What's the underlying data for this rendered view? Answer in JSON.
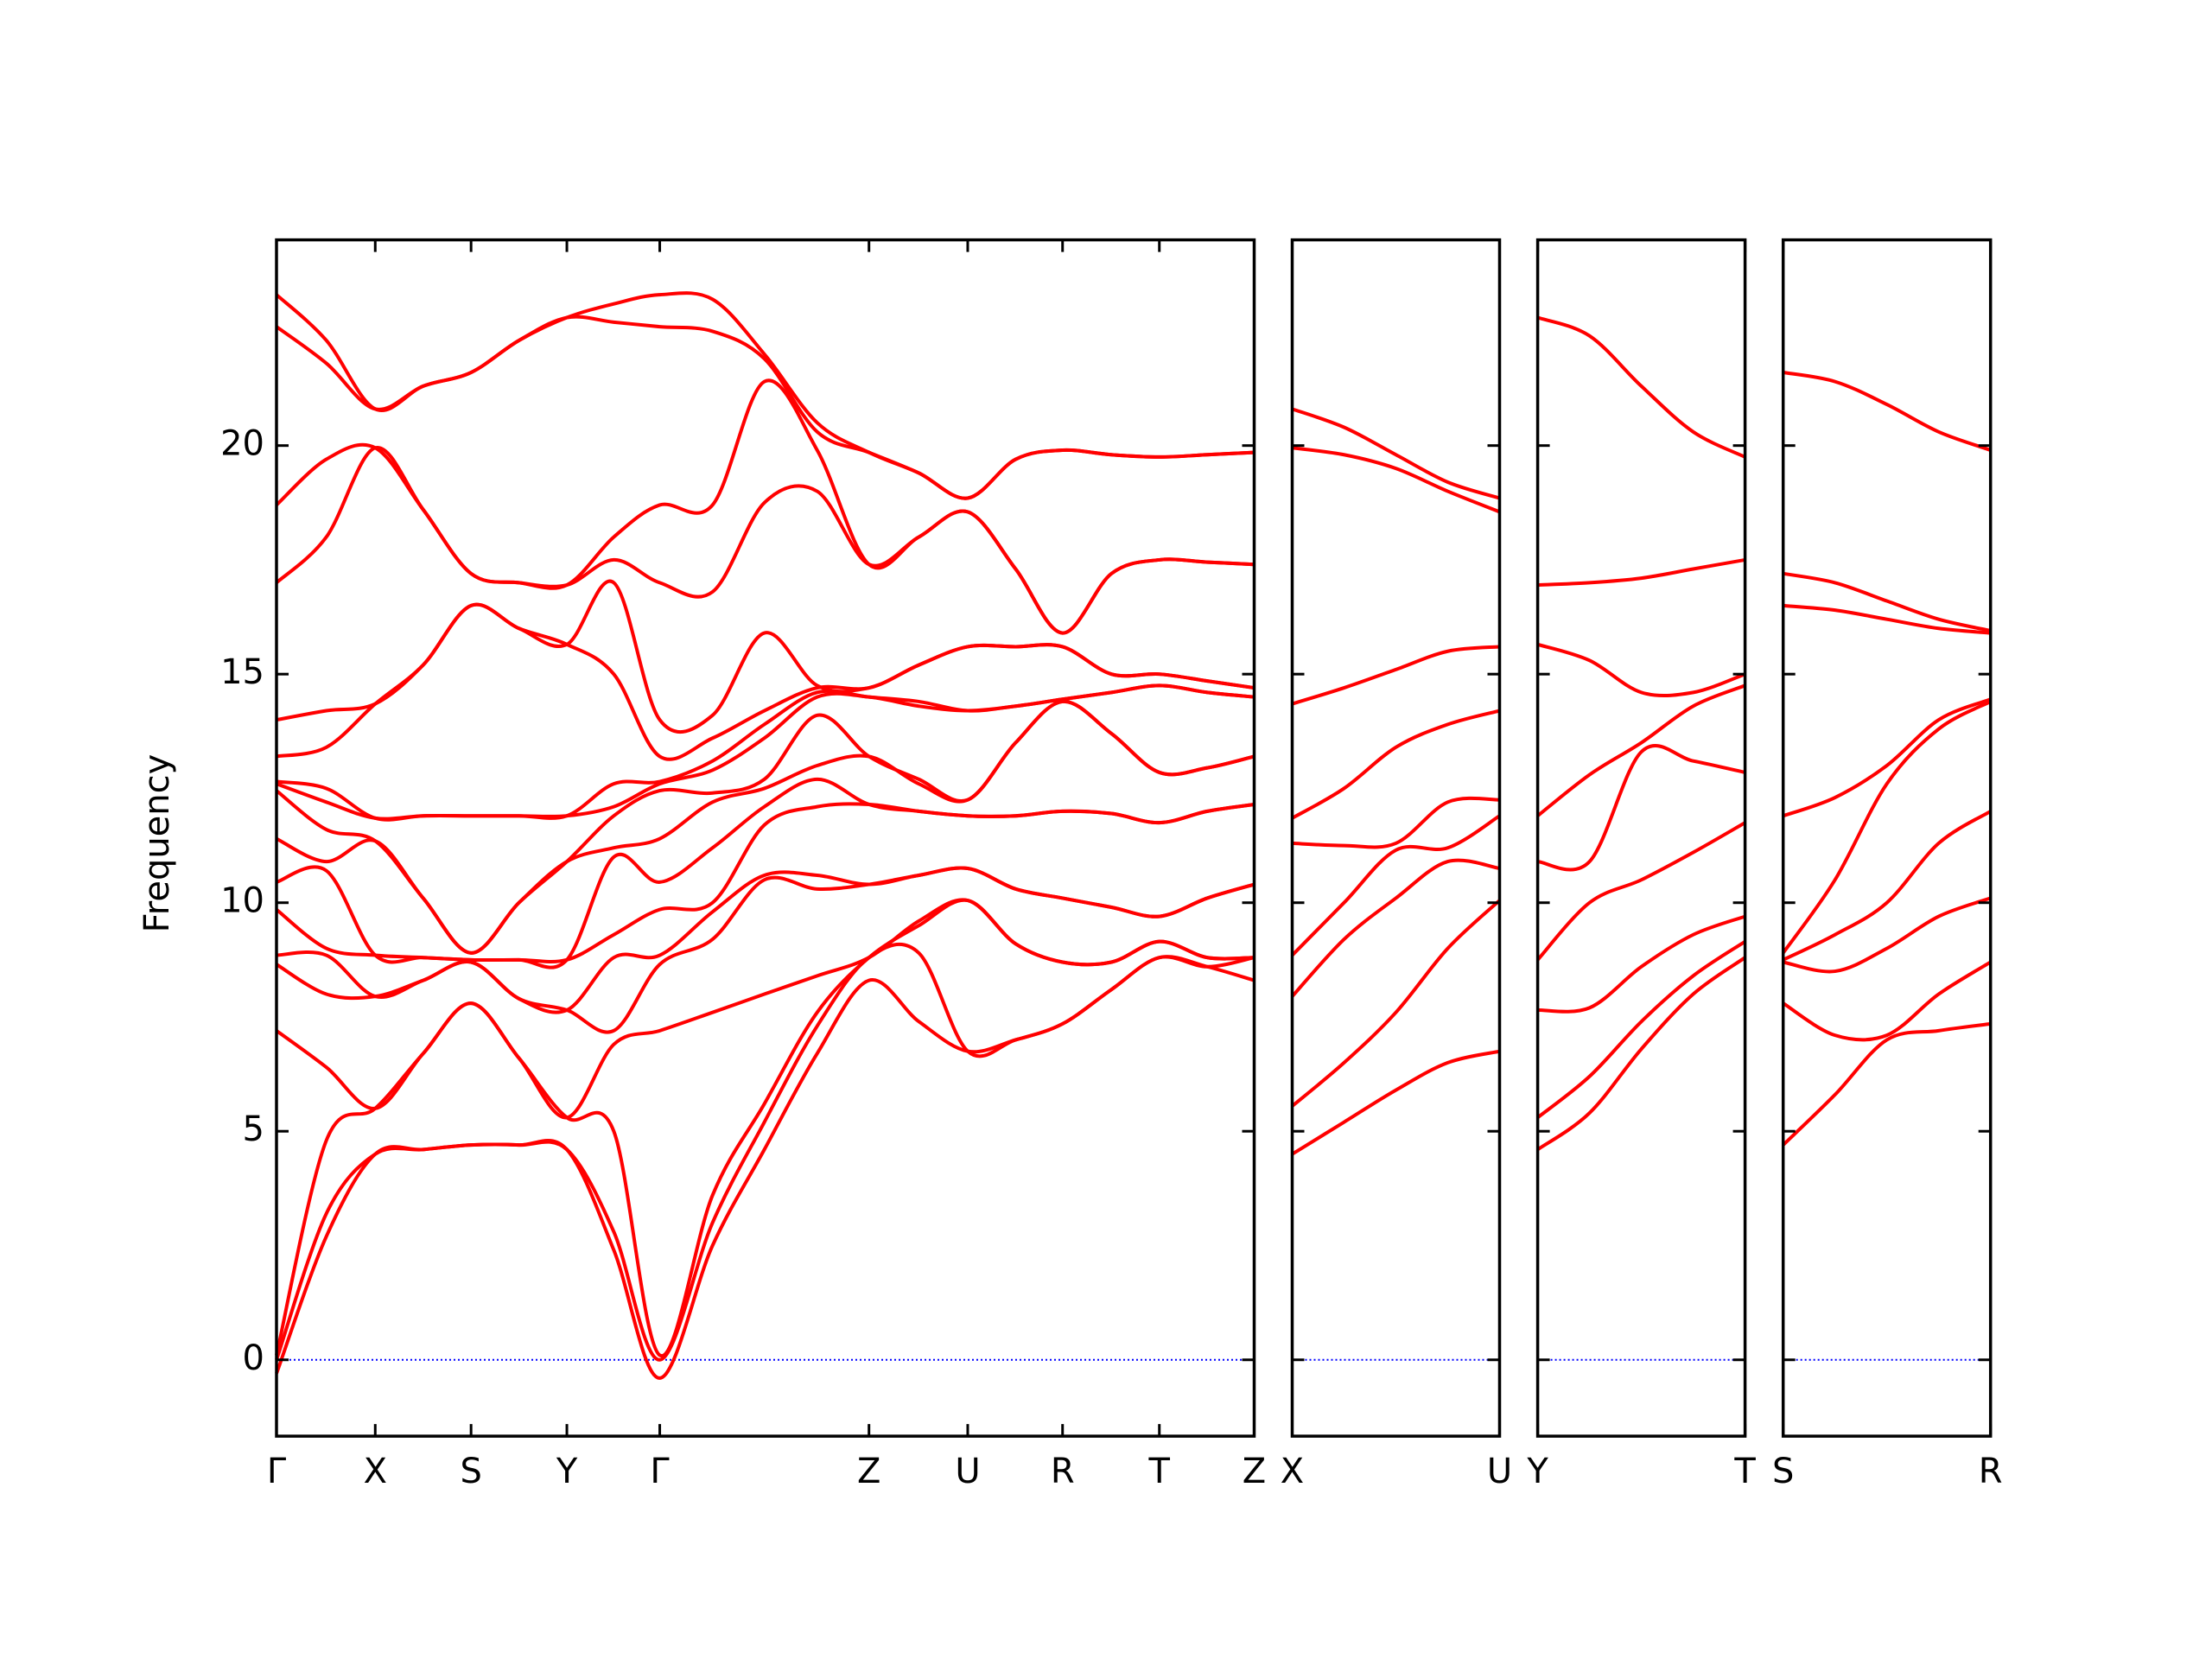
{
  "chart_data": [
    {
      "type": "line",
      "ylabel": "Frequency",
      "show_ytick_labels": true,
      "x": [
        0,
        0.051,
        0.101,
        0.15,
        0.199,
        0.248,
        0.297,
        0.345,
        0.392,
        0.446,
        0.499,
        0.553,
        0.606,
        0.657,
        0.707,
        0.756,
        0.804,
        0.854,
        0.903,
        0.952,
        1.0
      ],
      "xlim": [
        0,
        1.0
      ],
      "xticks": [
        {
          "value": 0,
          "label": "Γ"
        },
        {
          "value": 0.101,
          "label": "X"
        },
        {
          "value": 0.199,
          "label": "S"
        },
        {
          "value": 0.297,
          "label": "Y"
        },
        {
          "value": 0.392,
          "label": "Γ"
        },
        {
          "value": 0.606,
          "label": "Z"
        },
        {
          "value": 0.707,
          "label": "U"
        },
        {
          "value": 0.804,
          "label": "R"
        },
        {
          "value": 0.903,
          "label": "T"
        },
        {
          "value": 1.0,
          "label": "Z"
        }
      ],
      "ylim": [
        -1.67,
        24.5
      ],
      "yticks": [
        0,
        5,
        10,
        15,
        20
      ],
      "hline": {
        "value": 0,
        "color": "#0000ff"
      },
      "series": [
        {
          "color": "#ff0000",
          "values": [
            -0.3,
            2.7,
            4.5,
            4.6,
            4.7,
            4.7,
            4.6,
            2.4,
            -0.4,
            2.5,
            4.6,
            6.7,
            8.3,
            7.4,
            6.75,
            7.0,
            7.35,
            8.1,
            8.8,
            8.6,
            8.3
          ]
        },
        {
          "color": "#ff0000",
          "values": [
            0,
            3.2,
            4.5,
            4.6,
            4.7,
            4.7,
            4.6,
            2.8,
            0,
            3.0,
            5.2,
            7.3,
            8.8,
            8.9,
            6.75,
            7.0,
            7.35,
            8.1,
            8.8,
            8.6,
            8.8
          ]
        },
        {
          "color": "#ff0000",
          "values": [
            0.1,
            4.8,
            5.5,
            6.7,
            7.8,
            6.6,
            5.3,
            5.0,
            0.1,
            3.6,
            5.6,
            7.6,
            8.8,
            9.5,
            10.05,
            9.1,
            8.7,
            8.7,
            9.15,
            8.8,
            8.8
          ]
        },
        {
          "color": "#ff0000",
          "values": [
            7.2,
            6.4,
            5.5,
            6.7,
            7.8,
            6.6,
            5.3,
            6.9,
            7.2,
            7.6,
            8.0,
            8.4,
            8.8,
            9.6,
            10.05,
            9.1,
            8.7,
            8.7,
            9.15,
            8.8,
            8.8
          ]
        },
        {
          "color": "#ff0000",
          "values": [
            8.65,
            8.0,
            7.95,
            8.3,
            8.7,
            7.9,
            7.65,
            7.2,
            8.65,
            9.2,
            10.5,
            10.3,
            10.4,
            10.6,
            10.75,
            10.3,
            10.1,
            9.9,
            9.7,
            10.1,
            10.4
          ]
        },
        {
          "color": "#ff0000",
          "values": [
            8.85,
            8.85,
            7.95,
            8.3,
            8.7,
            7.9,
            7.65,
            8.8,
            8.85,
            9.8,
            10.6,
            10.6,
            10.4,
            10.6,
            10.75,
            10.3,
            10.1,
            9.9,
            9.7,
            10.1,
            10.4
          ]
        },
        {
          "color": "#ff0000",
          "values": [
            9.85,
            9.0,
            8.85,
            8.8,
            8.75,
            8.75,
            8.75,
            9.3,
            9.85,
            10.0,
            11.7,
            12.1,
            12.15,
            12.0,
            11.9,
            11.9,
            12.0,
            11.95,
            11.75,
            12.0,
            12.15
          ]
        },
        {
          "color": "#ff0000",
          "values": [
            10.45,
            10.7,
            8.85,
            8.8,
            8.75,
            8.75,
            8.75,
            11.0,
            10.45,
            11.2,
            12.1,
            12.7,
            12.15,
            12.0,
            11.9,
            11.9,
            12.0,
            11.95,
            11.75,
            12.0,
            12.15
          ]
        },
        {
          "color": "#ff0000",
          "values": [
            11.4,
            10.9,
            11.35,
            10.1,
            8.9,
            10.0,
            10.9,
            11.2,
            11.4,
            12.2,
            12.5,
            13.0,
            13.2,
            12.6,
            12.25,
            13.5,
            14.4,
            13.7,
            12.85,
            12.95,
            13.2
          ]
        },
        {
          "color": "#ff0000",
          "values": [
            12.45,
            11.6,
            11.35,
            10.1,
            8.9,
            10.0,
            10.9,
            11.9,
            12.45,
            12.4,
            12.7,
            14.1,
            13.2,
            12.7,
            12.25,
            13.5,
            14.4,
            13.7,
            12.85,
            12.95,
            13.2
          ]
        },
        {
          "color": "#ff0000",
          "values": [
            12.6,
            12.2,
            11.85,
            11.9,
            11.9,
            11.9,
            11.9,
            12.1,
            12.6,
            12.9,
            13.6,
            14.5,
            14.5,
            14.3,
            14.2,
            14.3,
            14.45,
            14.6,
            14.75,
            14.6,
            14.5
          ]
        },
        {
          "color": "#ff0000",
          "values": [
            12.65,
            12.5,
            11.85,
            11.9,
            11.9,
            11.9,
            11.9,
            12.6,
            12.65,
            13.1,
            13.9,
            14.6,
            14.5,
            14.4,
            14.2,
            14.3,
            14.45,
            14.6,
            14.75,
            14.6,
            14.5
          ]
        },
        {
          "color": "#ff0000",
          "values": [
            13.2,
            13.4,
            14.35,
            15.2,
            16.5,
            16.0,
            15.65,
            15.0,
            13.2,
            13.6,
            14.2,
            14.7,
            14.7,
            15.2,
            15.6,
            15.6,
            15.6,
            15.0,
            15.0,
            14.85,
            14.7
          ]
        },
        {
          "color": "#ff0000",
          "values": [
            14.0,
            14.2,
            14.35,
            15.2,
            16.5,
            16.0,
            15.65,
            17.0,
            14.0,
            14.1,
            15.9,
            14.75,
            14.7,
            15.2,
            15.6,
            15.6,
            15.6,
            15.0,
            15.0,
            14.85,
            14.7
          ]
        },
        {
          "color": "#ff0000",
          "values": [
            17.0,
            18.0,
            19.95,
            18.6,
            17.2,
            17.0,
            16.95,
            17.5,
            17.0,
            16.8,
            18.75,
            19.0,
            17.4,
            18.0,
            18.55,
            17.3,
            15.9,
            17.2,
            17.5,
            17.45,
            17.4
          ]
        },
        {
          "color": "#ff0000",
          "values": [
            18.7,
            19.7,
            19.95,
            18.6,
            17.2,
            17.0,
            16.95,
            18.0,
            18.7,
            18.7,
            21.4,
            19.9,
            17.4,
            18.0,
            18.55,
            17.3,
            15.9,
            17.2,
            17.5,
            17.45,
            17.4
          ]
        },
        {
          "color": "#ff0000",
          "values": [
            22.6,
            21.8,
            20.8,
            21.3,
            21.6,
            22.3,
            22.8,
            22.7,
            22.6,
            22.5,
            21.9,
            20.3,
            19.85,
            19.4,
            18.85,
            19.7,
            19.9,
            19.8,
            19.75,
            19.8,
            19.85
          ]
        },
        {
          "color": "#ff0000",
          "values": [
            23.3,
            22.3,
            20.8,
            21.3,
            21.6,
            22.3,
            22.8,
            23.1,
            23.3,
            23.2,
            22.0,
            20.5,
            19.85,
            19.4,
            18.85,
            19.7,
            19.9,
            19.8,
            19.75,
            19.8,
            19.85
          ]
        }
      ]
    },
    {
      "type": "line",
      "show_ytick_labels": false,
      "x": [
        0,
        0.053,
        0.106,
        0.159,
        0.212
      ],
      "xlim": [
        0,
        0.212
      ],
      "xticks": [
        {
          "value": 0,
          "label": "X"
        },
        {
          "value": 0.212,
          "label": "U"
        }
      ],
      "ylim": [
        -1.67,
        24.5
      ],
      "yticks": [
        0,
        5,
        10,
        15,
        20
      ],
      "hline": {
        "value": 0,
        "color": "#0000ff"
      },
      "series": [
        {
          "color": "#ff0000",
          "values": [
            4.5,
            5.2,
            5.9,
            6.5,
            6.75
          ]
        },
        {
          "color": "#ff0000",
          "values": [
            5.55,
            6.5,
            7.6,
            9.0,
            10.05
          ]
        },
        {
          "color": "#ff0000",
          "values": [
            7.95,
            9.2,
            10.1,
            10.9,
            10.75
          ]
        },
        {
          "color": "#ff0000",
          "values": [
            8.85,
            10.0,
            11.15,
            11.2,
            11.9
          ]
        },
        {
          "color": "#ff0000",
          "values": [
            11.3,
            11.25,
            11.3,
            12.2,
            12.25
          ]
        },
        {
          "color": "#ff0000",
          "values": [
            11.85,
            12.5,
            13.4,
            13.9,
            14.2
          ]
        },
        {
          "color": "#ff0000",
          "values": [
            14.35,
            14.7,
            15.1,
            15.5,
            15.6
          ]
        },
        {
          "color": "#ff0000",
          "values": [
            19.95,
            19.8,
            19.5,
            19.0,
            18.55
          ]
        },
        {
          "color": "#ff0000",
          "values": [
            20.8,
            20.4,
            19.8,
            19.2,
            18.85
          ]
        }
      ]
    },
    {
      "type": "line",
      "show_ytick_labels": false,
      "x": [
        0,
        0.053,
        0.106,
        0.159,
        0.212
      ],
      "xlim": [
        0,
        0.212
      ],
      "xticks": [
        {
          "value": 0,
          "label": "Y"
        },
        {
          "value": 0.212,
          "label": "T"
        }
      ],
      "ylim": [
        -1.67,
        24.5
      ],
      "yticks": [
        0,
        5,
        10,
        15,
        20
      ],
      "hline": {
        "value": 0,
        "color": "#0000ff"
      },
      "series": [
        {
          "color": "#ff0000",
          "values": [
            4.6,
            5.4,
            6.8,
            8.0,
            8.8
          ]
        },
        {
          "color": "#ff0000",
          "values": [
            5.3,
            6.2,
            7.4,
            8.4,
            9.15
          ]
        },
        {
          "color": "#ff0000",
          "values": [
            7.65,
            7.7,
            8.6,
            9.3,
            9.7
          ]
        },
        {
          "color": "#ff0000",
          "values": [
            8.75,
            10.0,
            10.5,
            11.1,
            11.75
          ]
        },
        {
          "color": "#ff0000",
          "values": [
            10.9,
            10.9,
            13.3,
            13.1,
            12.85
          ]
        },
        {
          "color": "#ff0000",
          "values": [
            11.9,
            12.8,
            13.5,
            14.3,
            14.75
          ]
        },
        {
          "color": "#ff0000",
          "values": [
            15.65,
            15.3,
            14.6,
            14.6,
            15.0
          ]
        },
        {
          "color": "#ff0000",
          "values": [
            16.95,
            17.0,
            17.1,
            17.3,
            17.5
          ]
        },
        {
          "color": "#ff0000",
          "values": [
            22.8,
            22.4,
            21.3,
            20.3,
            19.75
          ]
        }
      ]
    },
    {
      "type": "line",
      "show_ytick_labels": false,
      "x": [
        0,
        0.053,
        0.106,
        0.159,
        0.212
      ],
      "xlim": [
        0,
        0.212
      ],
      "xticks": [
        {
          "value": 0,
          "label": "S"
        },
        {
          "value": 0.212,
          "label": "R"
        }
      ],
      "ylim": [
        -1.67,
        24.5
      ],
      "yticks": [
        0,
        5,
        10,
        15,
        20
      ],
      "hline": {
        "value": 0,
        "color": "#0000ff"
      },
      "series": [
        {
          "color": "#ff0000",
          "values": [
            4.7,
            5.8,
            7.0,
            7.2,
            7.35
          ]
        },
        {
          "color": "#ff0000",
          "values": [
            7.8,
            7.1,
            7.1,
            8.0,
            8.7
          ]
        },
        {
          "color": "#ff0000",
          "values": [
            8.7,
            8.5,
            9.0,
            9.7,
            10.1
          ]
        },
        {
          "color": "#ff0000",
          "values": [
            8.75,
            9.3,
            10.0,
            11.3,
            12.0
          ]
        },
        {
          "color": "#ff0000",
          "values": [
            8.9,
            10.5,
            12.6,
            13.8,
            14.4
          ]
        },
        {
          "color": "#ff0000",
          "values": [
            11.9,
            12.3,
            13.0,
            14.0,
            14.45
          ]
        },
        {
          "color": "#ff0000",
          "values": [
            16.5,
            16.4,
            16.2,
            16.0,
            15.9
          ]
        },
        {
          "color": "#ff0000",
          "values": [
            17.2,
            17.0,
            16.6,
            16.2,
            15.95
          ]
        },
        {
          "color": "#ff0000",
          "values": [
            21.6,
            21.4,
            20.9,
            20.3,
            19.9
          ]
        }
      ]
    }
  ]
}
